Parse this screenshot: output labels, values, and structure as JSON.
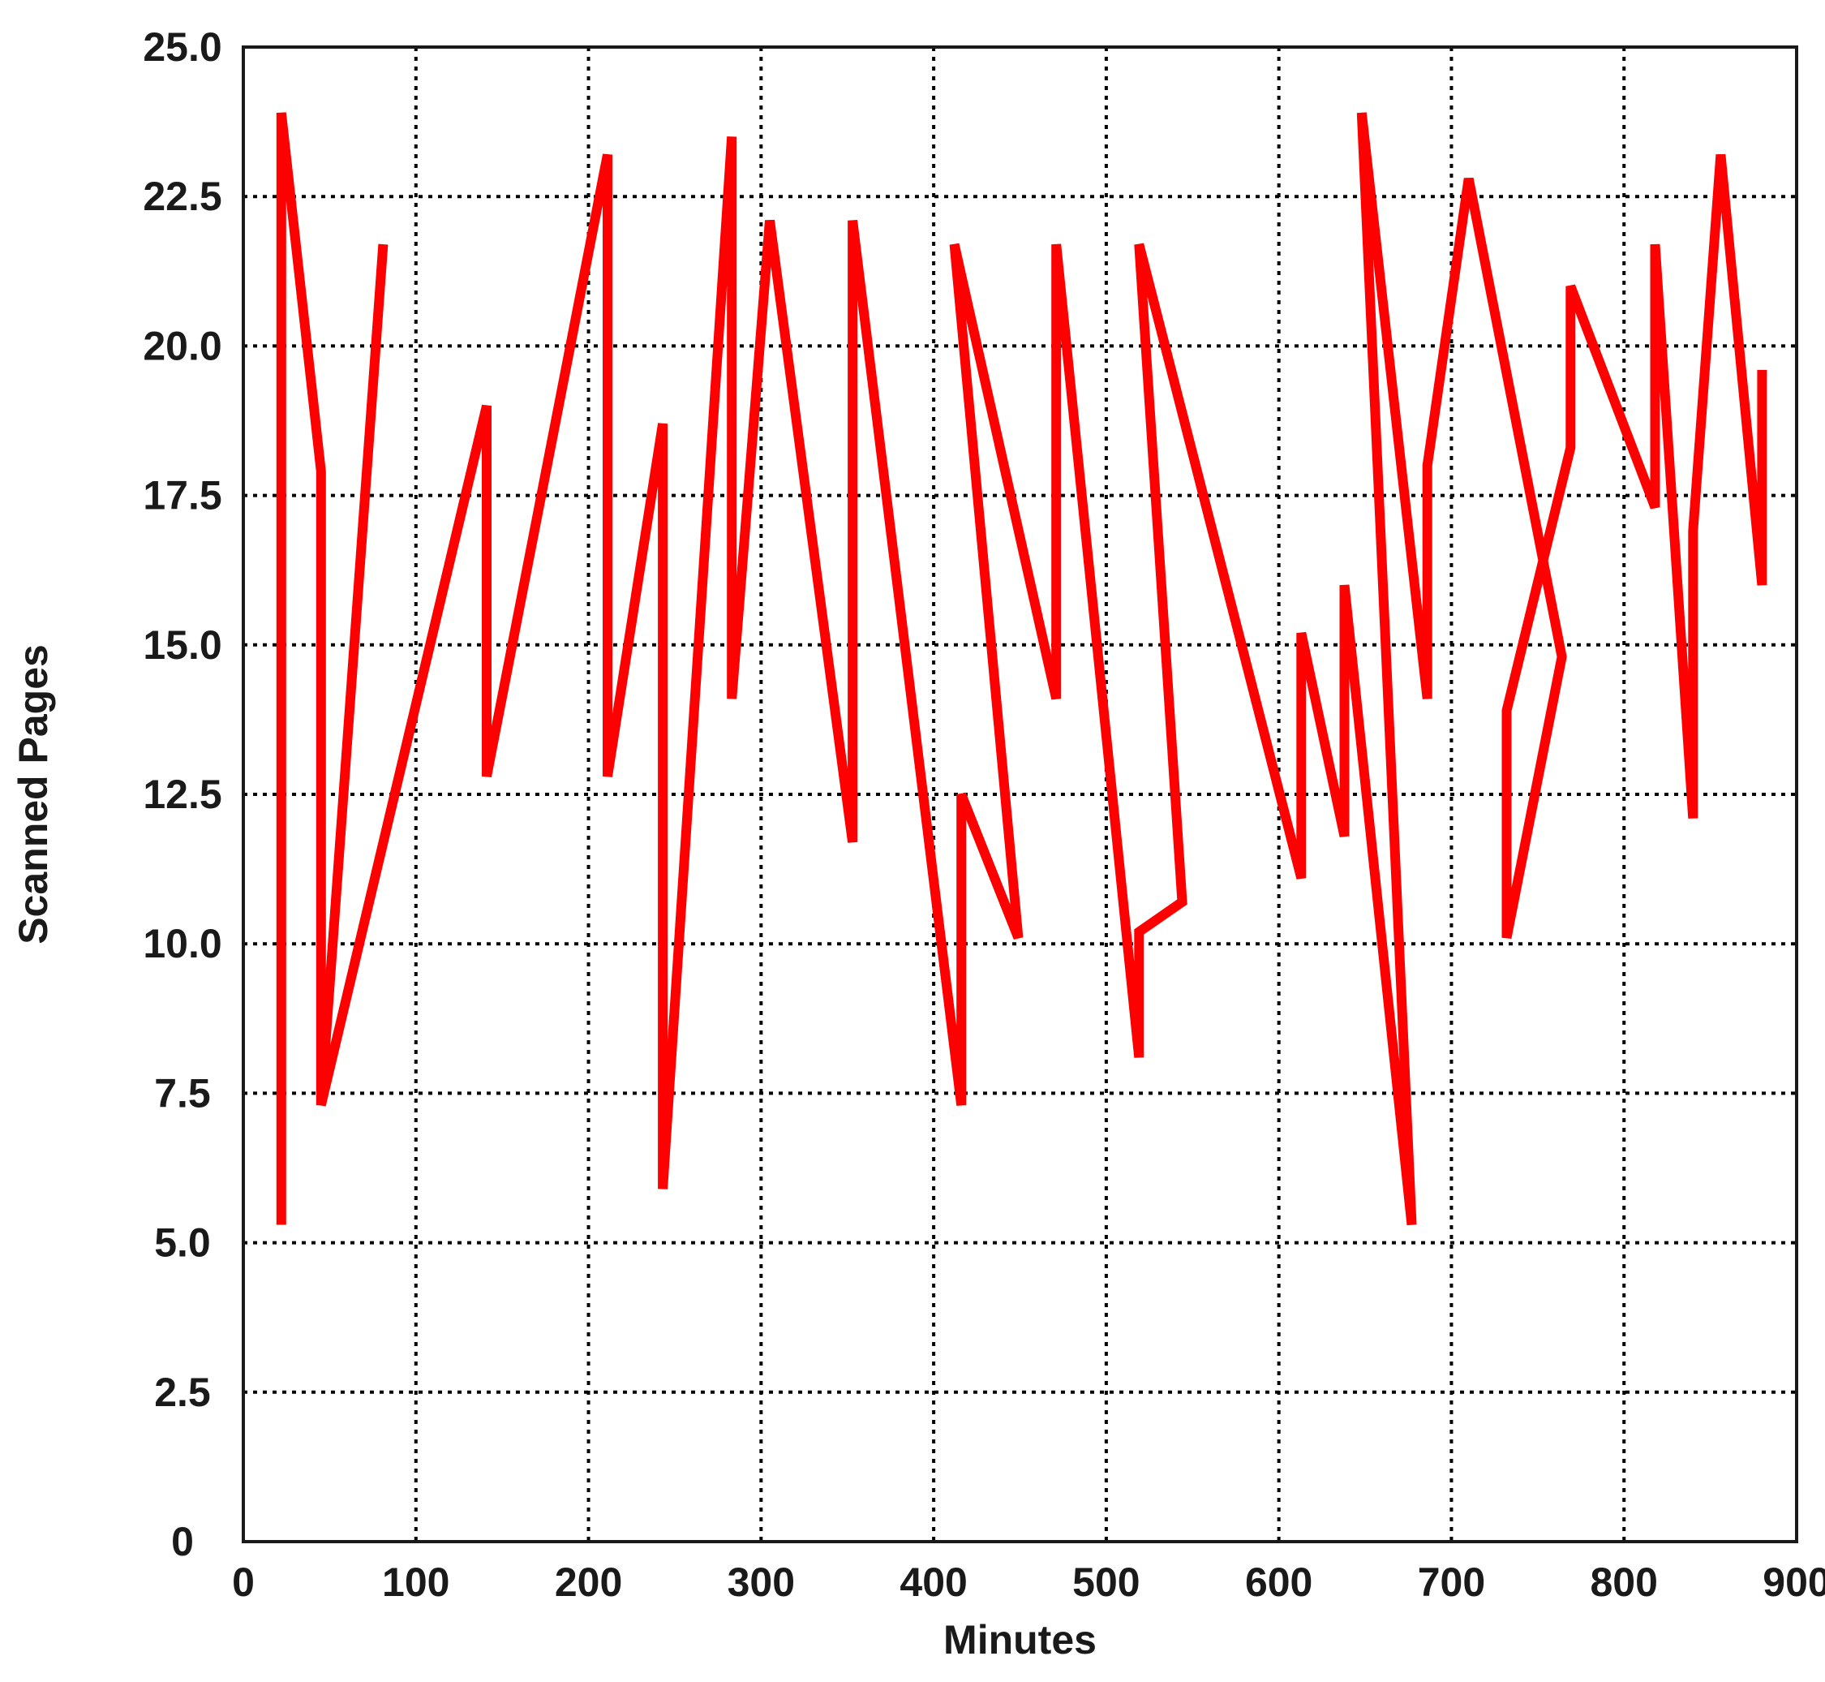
{
  "chart_data": {
    "type": "line",
    "title": "",
    "xlabel": "Minutes",
    "ylabel": "Scanned Pages",
    "xlim": [
      0,
      900
    ],
    "ylim": [
      0,
      25
    ],
    "x_ticks": [
      0,
      100,
      200,
      300,
      400,
      500,
      600,
      700,
      800,
      900
    ],
    "x_tick_labels": [
      "0",
      "100",
      "200",
      "300",
      "400",
      "500",
      "600",
      "700",
      "800",
      "900"
    ],
    "y_ticks": [
      0,
      2.5,
      5,
      7.5,
      10,
      12.5,
      15,
      17.5,
      20,
      22.5,
      25
    ],
    "y_tick_labels": [
      "0",
      "2.5",
      "5.0",
      "7.5",
      "10.0",
      "12.5",
      "15.0",
      "17.5",
      "20.0",
      "22.5",
      "25.0"
    ],
    "grid": true,
    "grid_style": "dotted",
    "legend": "none",
    "series": [
      {
        "color": "#ff0000",
        "x": [
          22,
          22,
          45,
          45,
          81,
          45,
          45,
          141,
          141,
          211,
          211,
          243,
          243,
          283,
          283,
          305,
          305,
          353,
          353,
          416,
          416,
          449,
          449,
          412,
          412,
          471,
          471,
          519,
          519,
          519,
          544,
          519,
          519,
          613,
          613,
          638,
          638,
          677,
          677,
          648,
          648,
          686,
          686,
          710,
          710,
          764,
          764,
          732,
          732,
          769,
          769,
          818,
          818,
          840,
          840,
          856,
          856,
          880,
          880
        ],
        "y": [
          5.3,
          23.9,
          17.9,
          7.3,
          21.7,
          7.3,
          7.3,
          19.0,
          12.8,
          23.2,
          12.8,
          18.7,
          5.9,
          23.5,
          14.1,
          22.1,
          22.1,
          11.7,
          22.1,
          7.3,
          12.5,
          10.1,
          10.1,
          21.7,
          21.7,
          14.1,
          21.7,
          8.1,
          10.2,
          10.2,
          10.7,
          21.7,
          21.7,
          11.1,
          15.2,
          11.8,
          16.0,
          5.3,
          5.3,
          23.9,
          23.9,
          14.1,
          18.0,
          22.8,
          22.8,
          14.8,
          14.8,
          10.1,
          13.9,
          18.3,
          21.0,
          17.3,
          21.7,
          12.1,
          16.9,
          23.2,
          23.2,
          16.0,
          19.6
        ]
      }
    ]
  }
}
